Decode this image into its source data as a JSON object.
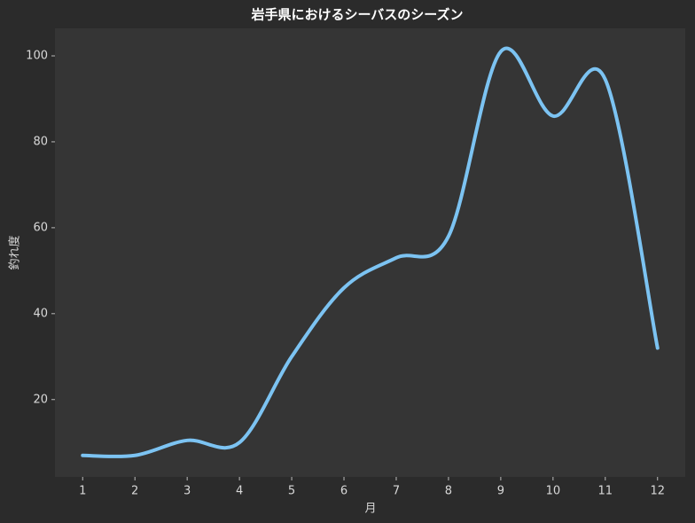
{
  "chart_data": {
    "type": "line",
    "title": "岩手県におけるシーバスのシーズン",
    "xlabel": "月",
    "ylabel": "釣れ度",
    "x": [
      1,
      2,
      3,
      4,
      5,
      6,
      7,
      8,
      9,
      10,
      11,
      12
    ],
    "series": [
      {
        "name": "釣れ度",
        "color": "#7cc3f2",
        "values": [
          7,
          7,
          10.5,
          10,
          30,
          46,
          53,
          58,
          101,
          86,
          94.5,
          32
        ]
      }
    ],
    "xlim": [
      0.47,
      12.53
    ],
    "ylim": [
      2,
      106.4
    ],
    "xticks": [
      1,
      2,
      3,
      4,
      5,
      6,
      7,
      8,
      9,
      10,
      11,
      12
    ],
    "yticks": [
      20,
      40,
      60,
      80,
      100
    ],
    "grid": false,
    "smooth": true
  }
}
